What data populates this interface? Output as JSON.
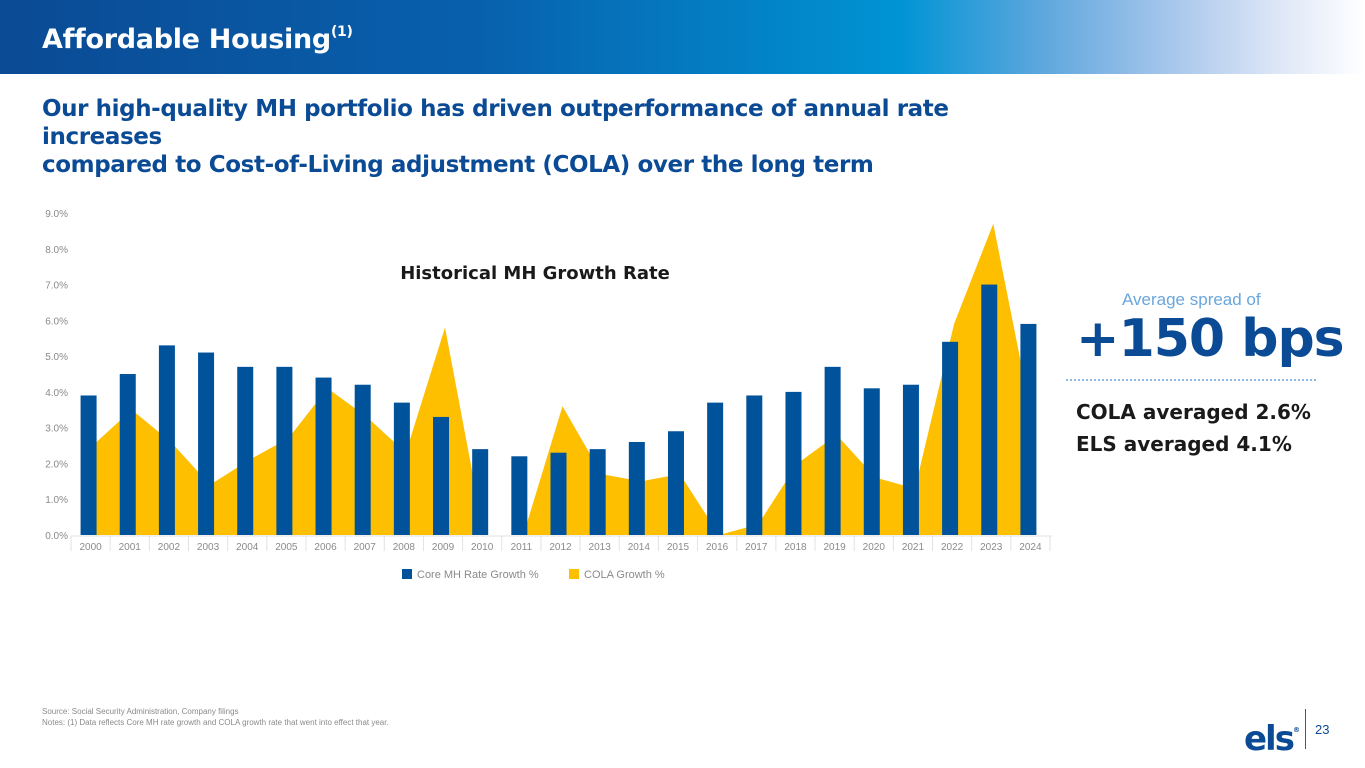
{
  "header": {
    "title": "Affordable Housing",
    "title_superscript": "(1)"
  },
  "subtitle": {
    "line1": "Our high-quality MH portfolio has driven outperformance of annual rate increases",
    "line2": "compared to Cost-of-Living adjustment (COLA) over the long term"
  },
  "colors": {
    "brand_blue": "#0b4a94",
    "bar_blue": "#00529b",
    "cola_yellow": "#fdbf00",
    "light_blue": "#6aa6dc"
  },
  "chart_data": {
    "type": "bar",
    "title": "Historical MH Growth Rate",
    "xlabel": "",
    "ylabel": "",
    "ylim": [
      0,
      9
    ],
    "yticks": [
      "0.0%",
      "1.0%",
      "2.0%",
      "3.0%",
      "4.0%",
      "5.0%",
      "6.0%",
      "7.0%",
      "8.0%",
      "9.0%"
    ],
    "grid": false,
    "legend_position": "bottom-center",
    "categories": [
      "2000",
      "2001",
      "2002",
      "2003",
      "2004",
      "2005",
      "2006",
      "2007",
      "2008",
      "2009",
      "2010",
      "2011",
      "2012",
      "2013",
      "2014",
      "2015",
      "2016",
      "2017",
      "2018",
      "2019",
      "2020",
      "2021",
      "2022",
      "2023",
      "2024"
    ],
    "series": [
      {
        "name": "Core MH Rate Growth %",
        "type": "bar",
        "color": "#00529b",
        "values": [
          3.9,
          4.5,
          5.3,
          5.1,
          4.7,
          4.7,
          4.4,
          4.2,
          3.7,
          3.3,
          2.4,
          2.2,
          2.3,
          2.4,
          2.6,
          2.9,
          3.7,
          3.9,
          4.0,
          4.7,
          4.1,
          4.2,
          5.4,
          7.0,
          5.9
        ]
      },
      {
        "name": "COLA Growth %",
        "type": "area",
        "color": "#fdbf00",
        "values": [
          2.5,
          3.5,
          2.6,
          1.4,
          2.1,
          2.7,
          4.1,
          3.3,
          2.3,
          5.8,
          0.0,
          0.0,
          3.6,
          1.7,
          1.5,
          1.7,
          0.0,
          0.3,
          2.0,
          2.8,
          1.6,
          1.3,
          5.9,
          8.7,
          3.2
        ]
      }
    ]
  },
  "side_panel": {
    "caption": "Average spread of",
    "headline": "+150 bps",
    "stats": [
      "COLA averaged 2.6%",
      "ELS averaged 4.1%"
    ]
  },
  "footnotes": {
    "source": "Source: Social Security Administration, Company filings",
    "notes": "Notes:  (1) Data reflects Core MH rate growth and COLA growth rate that went into effect that year."
  },
  "footer": {
    "logo_text": "els",
    "logo_mark": "®",
    "page_number": "23"
  }
}
